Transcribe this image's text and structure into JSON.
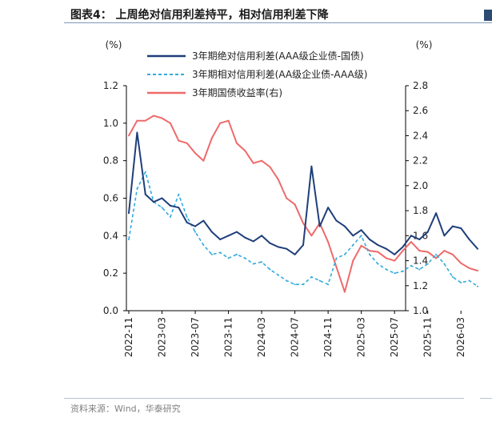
{
  "header": {
    "title": "图表4： 上周绝对信用利差持平，相对信用利差下降"
  },
  "footer": {
    "source": "资料来源：Wind，华泰研究"
  },
  "colors": {
    "series1": "#1f3f7a",
    "series2": "#33aadd",
    "series3": "#ee6a6a",
    "axis": "#000000",
    "title_rule": "#7e99b8"
  },
  "chart_data": {
    "type": "line",
    "left_unit": "(%)",
    "right_unit": "(%)",
    "ylim_left": [
      0.0,
      1.2
    ],
    "ylim_right": [
      1.0,
      2.8
    ],
    "yticks_left": [
      "0.0",
      "0.2",
      "0.4",
      "0.6",
      "0.8",
      "1.0",
      "1.2"
    ],
    "yticks_right": [
      "1.0",
      "1.2",
      "1.4",
      "1.6",
      "1.8",
      "2.0",
      "2.2",
      "2.4",
      "2.6",
      "2.8"
    ],
    "xticks": [
      "2022-11",
      "2023-03",
      "2023-07",
      "2023-11",
      "2024-03",
      "2024-07",
      "2024-11",
      "2025-03",
      "2025-07",
      "2025-11",
      "2026-03"
    ],
    "grid": false,
    "legend_position": "top",
    "series": [
      {
        "name": "3年期绝对信用利差(AAA级企业债-国债)",
        "axis": "left",
        "style": "solid",
        "x": [
          "2022-11",
          "2022-12",
          "2023-01",
          "2023-02",
          "2023-03",
          "2023-04",
          "2023-05",
          "2023-06",
          "2023-07",
          "2023-08",
          "2023-09",
          "2023-10",
          "2023-11",
          "2023-12",
          "2024-01",
          "2024-02",
          "2024-03",
          "2024-04",
          "2024-05",
          "2024-06",
          "2024-07",
          "2024-08",
          "2024-09",
          "2024-10",
          "2024-11",
          "2024-12",
          "2025-01",
          "2025-02",
          "2025-03",
          "2025-04",
          "2025-05",
          "2025-06",
          "2025-07",
          "2025-08",
          "2025-09",
          "2025-10",
          "2025-11",
          "2025-12",
          "2026-01",
          "2026-02",
          "2026-03",
          "2026-04",
          "2026-05"
        ],
        "values": [
          0.52,
          0.95,
          0.62,
          0.58,
          0.6,
          0.56,
          0.55,
          0.47,
          0.45,
          0.48,
          0.42,
          0.38,
          0.4,
          0.42,
          0.39,
          0.37,
          0.4,
          0.36,
          0.34,
          0.33,
          0.3,
          0.35,
          0.77,
          0.45,
          0.55,
          0.48,
          0.45,
          0.4,
          0.43,
          0.38,
          0.35,
          0.33,
          0.3,
          0.34,
          0.4,
          0.38,
          0.42,
          0.52,
          0.4,
          0.45,
          0.44,
          0.38,
          0.33
        ]
      },
      {
        "name": "3年期相对信用利差(AA级企业债-AAA级)",
        "axis": "left",
        "style": "dashed",
        "x": [
          "2022-11",
          "2022-12",
          "2023-01",
          "2023-02",
          "2023-03",
          "2023-04",
          "2023-05",
          "2023-06",
          "2023-07",
          "2023-08",
          "2023-09",
          "2023-10",
          "2023-11",
          "2023-12",
          "2024-01",
          "2024-02",
          "2024-03",
          "2024-04",
          "2024-05",
          "2024-06",
          "2024-07",
          "2024-08",
          "2024-09",
          "2024-10",
          "2024-11",
          "2024-12",
          "2025-01",
          "2025-02",
          "2025-03",
          "2025-04",
          "2025-05",
          "2025-06",
          "2025-07",
          "2025-08",
          "2025-09",
          "2025-10",
          "2025-11",
          "2025-12",
          "2026-01",
          "2026-02",
          "2026-03",
          "2026-04",
          "2026-05"
        ],
        "values": [
          0.38,
          0.65,
          0.74,
          0.58,
          0.55,
          0.5,
          0.62,
          0.5,
          0.42,
          0.35,
          0.3,
          0.31,
          0.28,
          0.3,
          0.28,
          0.25,
          0.26,
          0.22,
          0.19,
          0.16,
          0.14,
          0.14,
          0.18,
          0.16,
          0.14,
          0.28,
          0.3,
          0.35,
          0.4,
          0.3,
          0.25,
          0.22,
          0.2,
          0.21,
          0.24,
          0.22,
          0.25,
          0.3,
          0.25,
          0.18,
          0.15,
          0.16,
          0.13
        ]
      },
      {
        "name": "3年期国债收益率(右)",
        "axis": "right",
        "style": "solid",
        "x": [
          "2022-11",
          "2022-12",
          "2023-01",
          "2023-02",
          "2023-03",
          "2023-04",
          "2023-05",
          "2023-06",
          "2023-07",
          "2023-08",
          "2023-09",
          "2023-10",
          "2023-11",
          "2023-12",
          "2024-01",
          "2024-02",
          "2024-03",
          "2024-04",
          "2024-05",
          "2024-06",
          "2024-07",
          "2024-08",
          "2024-09",
          "2024-10",
          "2024-11",
          "2024-12",
          "2025-01",
          "2025-02",
          "2025-03",
          "2025-04",
          "2025-05",
          "2025-06",
          "2025-07",
          "2025-08",
          "2025-09",
          "2025-10",
          "2025-11",
          "2025-12",
          "2026-01",
          "2026-02",
          "2026-03",
          "2026-04",
          "2026-05"
        ],
        "values": [
          2.4,
          2.52,
          2.52,
          2.56,
          2.54,
          2.5,
          2.36,
          2.34,
          2.26,
          2.2,
          2.38,
          2.5,
          2.52,
          2.34,
          2.28,
          2.18,
          2.2,
          2.15,
          2.05,
          1.9,
          1.85,
          1.7,
          1.6,
          1.7,
          1.55,
          1.35,
          1.15,
          1.4,
          1.52,
          1.48,
          1.47,
          1.42,
          1.4,
          1.48,
          1.55,
          1.48,
          1.47,
          1.42,
          1.48,
          1.45,
          1.38,
          1.34,
          1.32
        ]
      }
    ]
  }
}
